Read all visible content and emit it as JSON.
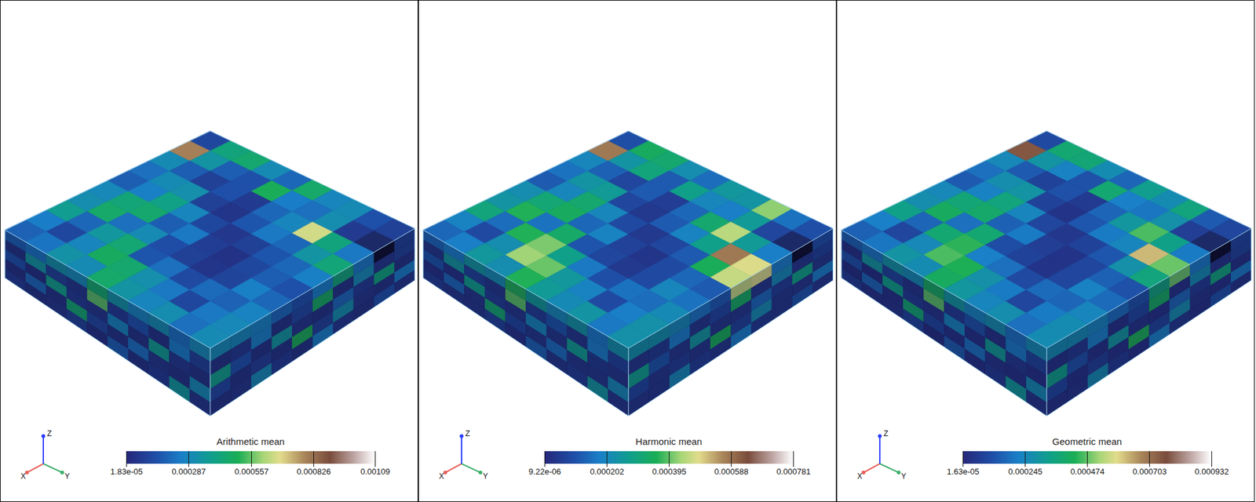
{
  "chart_data": [
    {
      "type": "heatmap",
      "title": "Arithmetic mean",
      "axes_triad": [
        "X",
        "Y",
        "Z"
      ],
      "colorbar": {
        "range": [
          1.83e-05,
          0.00109
        ],
        "ticks": [
          {
            "value": 1.83e-05,
            "label": "1.83e-05"
          },
          0.000287,
          0.000557,
          0.000826,
          0.00109
        ]
      },
      "cells": {
        "top": [
          [
            0.00012,
            0.00042,
            0.00045,
            0.0003,
            0.0002,
            0.00046,
            0.00028,
            0.0003,
            0.00015,
            0.0001
          ],
          [
            0.0008,
            0.00034,
            0.00018,
            0.00015,
            0.00049,
            0.00025,
            0.00022,
            0.00031,
            8e-05,
            null
          ],
          [
            0.0003,
            0.00018,
            0.0001,
            0.00015,
            8e-05,
            0.0002,
            0.00028,
            0.00066,
            0.00042,
            0.00024
          ],
          [
            0.00022,
            0.0003,
            0.00032,
            0.0001,
            6e-05,
            0.00016,
            0.00024,
            0.0002,
            0.00034,
            0.00043
          ],
          [
            0.00018,
            0.00026,
            0.0004,
            0.00028,
            0.00012,
            7e-05,
            0.0001,
            0.00016,
            0.0002,
            0.00026
          ],
          [
            0.00029,
            0.00043,
            0.00045,
            0.00018,
            0.00024,
            9e-05,
            5e-05,
            0.00012,
            0.00018,
            0.00015
          ],
          [
            0.00031,
            0.00046,
            0.00022,
            0.0003,
            0.00014,
            0.0001,
            6e-05,
            0.00011,
            0.00026,
            0.0002
          ],
          [
            0.00038,
            0.0002,
            0.00035,
            0.00044,
            0.00016,
            0.00022,
            0.00013,
            0.00021,
            0.00019,
            0.00027
          ],
          [
            0.00025,
            0.00012,
            0.00028,
            0.00048,
            0.00045,
            0.00032,
            0.00024,
            0.00012,
            0.00024,
            0.00029
          ],
          [
            0.00019,
            0.00023,
            0.00033,
            0.0003,
            0.00046,
            0.00034,
            0.00028,
            0.00031,
            0.00022,
            0.0003
          ]
        ],
        "front_left": [
          [
            5e-05,
            0.00035,
            0.0001,
            6e-05,
            0.00055,
            8e-05,
            0.00015,
            5e-05,
            0.00025,
            0.0001
          ],
          [
            0.00015,
            4e-05,
            0.0004,
            8e-05,
            6e-05,
            0.00028,
            5e-05,
            0.00038,
            7e-05,
            5e-05
          ],
          [
            4e-05,
            0.0002,
            5e-05,
            0.00045,
            0.00012,
            5e-05,
            0.00022,
            6e-05,
            5e-05,
            0.0003
          ],
          [
            8e-05,
            5e-05,
            6e-05,
            0.0001,
            4e-05,
            0.00018,
            5e-05,
            8e-05,
            0.00036,
            6e-05
          ]
        ],
        "front_right": [
          [
            0.0001,
            6e-05,
            0.0003,
            5e-05,
            0.00048,
            0.00012,
            5e-05,
            0.00026,
            7e-05,
            5e-05
          ],
          [
            5e-05,
            0.00042,
            8e-05,
            0.0002,
            5e-05,
            6e-05,
            0.00035,
            5e-05,
            0.00015,
            0.0004
          ],
          [
            0.00025,
            5e-05,
            6e-05,
            0.00032,
            0.0001,
            0.0005,
            5e-05,
            9e-05,
            5e-05,
            0.00012
          ],
          [
            6e-05,
            0.00015,
            5e-05,
            7e-05,
            0.00026,
            5e-05,
            8e-05,
            0.0003,
            6e-05,
            5e-05
          ]
        ]
      }
    },
    {
      "type": "heatmap",
      "title": "Harmonic mean",
      "axes_triad": [
        "X",
        "Y",
        "Z"
      ],
      "colorbar": {
        "range": [
          9.22e-06,
          0.000781
        ],
        "ticks": [
          {
            "value": 9.22e-06,
            "label": "9.22e-06"
          },
          0.000202,
          0.000395,
          0.000588,
          0.000781
        ]
      },
      "cells": {
        "top": [
          [
            0.0001,
            0.00034,
            0.00032,
            0.00022,
            0.00015,
            0.00025,
            0.00024,
            0.00042,
            0.00016,
            0.0001
          ],
          [
            0.00058,
            0.00024,
            0.0003,
            0.00012,
            0.00028,
            0.0002,
            0.00018,
            0.00026,
            8e-05,
            null
          ],
          [
            0.0002,
            0.00013,
            8e-05,
            0.00012,
            6e-05,
            0.00014,
            0.00032,
            0.00045,
            0.00026,
            0.00018
          ],
          [
            0.00016,
            0.00024,
            0.00026,
            8e-05,
            5e-05,
            0.00012,
            0.00019,
            0.00028,
            0.00058,
            0.00048
          ],
          [
            0.00012,
            0.0002,
            0.00032,
            0.0002,
            9e-05,
            5e-05,
            8e-05,
            0.00012,
            0.00035,
            0.00046
          ],
          [
            0.00022,
            0.00031,
            0.00034,
            0.00014,
            0.00019,
            7e-05,
            4e-05,
            9e-05,
            0.00014,
            0.00012
          ],
          [
            0.00024,
            0.00036,
            0.00016,
            0.00033,
            0.00011,
            8e-05,
            5e-05,
            9e-05,
            0.0002,
            0.00016
          ],
          [
            0.0003,
            0.00015,
            0.00036,
            0.00041,
            0.00028,
            0.00017,
            0.0001,
            0.00016,
            0.00015,
            0.00021
          ],
          [
            0.00019,
            9e-05,
            0.00022,
            0.00043,
            0.0004,
            0.00025,
            0.00019,
            9e-05,
            0.00018,
            0.00023
          ],
          [
            0.00014,
            0.00018,
            0.00025,
            0.00022,
            0.00036,
            0.00026,
            0.00021,
            0.00024,
            0.00017,
            0.00023
          ]
        ],
        "front_left": [
          [
            4e-05,
            0.00025,
            7e-05,
            4e-05,
            0.00039,
            6e-05,
            0.00011,
            4e-05,
            0.00018,
            7e-05
          ],
          [
            0.00011,
            3e-05,
            0.00028,
            6e-05,
            4e-05,
            0.0002,
            4e-05,
            0.00027,
            5e-05,
            4e-05
          ],
          [
            3e-05,
            0.00014,
            4e-05,
            0.00032,
            8e-05,
            4e-05,
            0.00015,
            4e-05,
            4e-05,
            0.00021
          ],
          [
            6e-05,
            4e-05,
            4e-05,
            7e-05,
            3e-05,
            0.00013,
            4e-05,
            6e-05,
            0.00025,
            4e-05
          ]
        ],
        "front_right": [
          [
            7e-05,
            4e-05,
            0.00021,
            4e-05,
            0.00034,
            8e-05,
            4e-05,
            0.00018,
            5e-05,
            4e-05
          ],
          [
            4e-05,
            0.00029,
            6e-05,
            0.00014,
            4e-05,
            4e-05,
            0.00025,
            4e-05,
            0.00011,
            0.00028
          ],
          [
            0.00018,
            4e-05,
            4e-05,
            0.00022,
            7e-05,
            0.00035,
            4e-05,
            6e-05,
            4e-05,
            8e-05
          ],
          [
            4e-05,
            0.00011,
            4e-05,
            5e-05,
            0.00018,
            4e-05,
            6e-05,
            0.00021,
            4e-05,
            4e-05
          ]
        ]
      }
    },
    {
      "type": "heatmap",
      "title": "Geometric mean",
      "axes_triad": [
        "X",
        "Y",
        "Z"
      ],
      "colorbar": {
        "range": [
          1.63e-05,
          0.000932
        ],
        "ticks": [
          {
            "value": 1.63e-05,
            "label": "1.63e-05"
          },
          0.000245,
          0.000474,
          0.000703,
          0.000932
        ]
      },
      "cells": {
        "top": [
          [
            0.00011,
            0.00038,
            0.00037,
            0.00026,
            0.00017,
            0.00033,
            0.00026,
            0.00036,
            0.00015,
            0.0001
          ],
          [
            0.00075,
            0.00029,
            0.00023,
            0.00013,
            0.00038,
            0.00022,
            0.0002,
            0.00028,
            8e-05,
            null
          ],
          [
            0.00025,
            0.00015,
            9e-05,
            0.00013,
            7e-05,
            0.00017,
            0.0003,
            0.00046,
            0.00034,
            0.00021
          ],
          [
            0.00019,
            0.00027,
            0.00029,
            9e-05,
            5e-05,
            0.00014,
            0.00021,
            0.00024,
            0.00062,
            0.00048
          ],
          [
            0.00015,
            0.00023,
            0.00036,
            0.00024,
            0.0001,
            6e-05,
            9e-05,
            0.00014,
            0.00028,
            0.00036
          ],
          [
            0.00025,
            0.00037,
            0.00039,
            0.00016,
            0.00021,
            8e-05,
            5e-05,
            0.0001,
            0.00016,
            0.00013
          ],
          [
            0.00027,
            0.00041,
            0.00019,
            0.00038,
            0.00012,
            9e-05,
            5e-05,
            0.0001,
            0.00023,
            0.00018
          ],
          [
            0.00034,
            0.00017,
            0.00038,
            0.00044,
            0.00022,
            0.00019,
            0.00011,
            0.00018,
            0.00017,
            0.00024
          ],
          [
            0.00022,
            0.0001,
            0.00025,
            0.00046,
            0.00043,
            0.00028,
            0.00021,
            0.0001,
            0.00021,
            0.00026
          ],
          [
            0.00016,
            0.0002,
            0.00029,
            0.00026,
            0.00041,
            0.0003,
            0.00024,
            0.00027,
            0.00019,
            0.00026
          ]
        ],
        "front_left": [
          [
            4e-05,
            0.0003,
            9e-05,
            5e-05,
            0.00047,
            7e-05,
            0.00013,
            4e-05,
            0.00021,
            9e-05
          ],
          [
            0.00013,
            3e-05,
            0.00034,
            7e-05,
            5e-05,
            0.00024,
            4e-05,
            0.00032,
            6e-05,
            4e-05
          ],
          [
            3e-05,
            0.00017,
            4e-05,
            0.00038,
            0.0001,
            4e-05,
            0.00019,
            5e-05,
            4e-05,
            0.00026
          ],
          [
            7e-05,
            4e-05,
            5e-05,
            9e-05,
            3e-05,
            0.00015,
            4e-05,
            7e-05,
            0.00031,
            5e-05
          ]
        ],
        "front_right": [
          [
            9e-05,
            5e-05,
            0.00026,
            4e-05,
            0.00041,
            0.0001,
            4e-05,
            0.00022,
            6e-05,
            4e-05
          ],
          [
            4e-05,
            0.00036,
            7e-05,
            0.00017,
            4e-05,
            5e-05,
            0.0003,
            4e-05,
            0.00013,
            0.00034
          ],
          [
            0.00021,
            4e-05,
            5e-05,
            0.00027,
            9e-05,
            0.00043,
            4e-05,
            8e-05,
            4e-05,
            0.0001
          ],
          [
            5e-05,
            0.00013,
            4e-05,
            6e-05,
            0.00022,
            4e-05,
            7e-05,
            0.00026,
            5e-05,
            4e-05
          ]
        ]
      }
    }
  ]
}
